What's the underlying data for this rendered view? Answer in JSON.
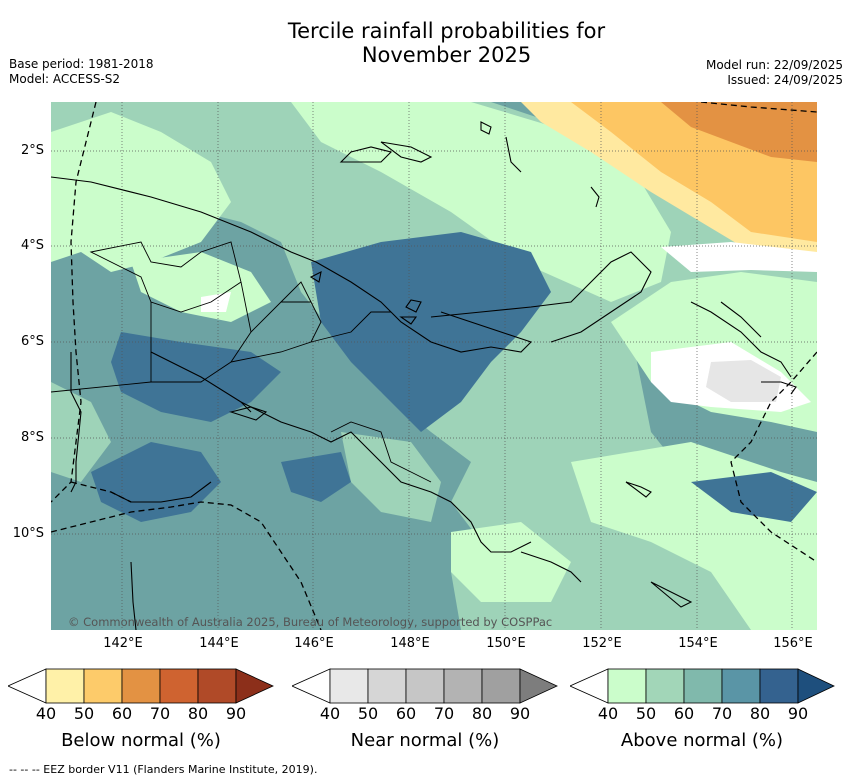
{
  "title_line1": "Tercile rainfall probabilities for",
  "title_line2": "November 2025",
  "base_period": "Base period: 1981-2018",
  "model": "Model: ACCESS-S2",
  "model_run": "Model run: 22/09/2025",
  "issued": "Issued: 24/09/2025",
  "copyright": "© Commonwealth of Australia 2025, Bureau of Meteorology, supported by COSPPac",
  "x_ticks": [
    "142°E",
    "144°E",
    "146°E",
    "148°E",
    "150°E",
    "152°E",
    "154°E",
    "156°E"
  ],
  "y_ticks": [
    "2°S",
    "4°S",
    "6°S",
    "8°S",
    "10°S"
  ],
  "colorbars": [
    {
      "label": "Below normal (%)",
      "ticks": [
        "40",
        "50",
        "60",
        "70",
        "80",
        "90"
      ],
      "colors": [
        "#fff1a8",
        "#fdcb6a",
        "#e39243",
        "#cf6330",
        "#b04a28",
        "#8c2f1a"
      ]
    },
    {
      "label": "Near normal (%)",
      "ticks": [
        "40",
        "50",
        "60",
        "70",
        "80",
        "90"
      ],
      "colors": [
        "#e8e8e8",
        "#d6d6d6",
        "#c6c6c6",
        "#b3b3b3",
        "#a0a0a0",
        "#7d7d7d"
      ]
    },
    {
      "label": "Above normal (%)",
      "ticks": [
        "40",
        "50",
        "60",
        "70",
        "80",
        "90"
      ],
      "colors": [
        "#cbfdcb",
        "#a2d6b8",
        "#80b9ac",
        "#5a95a6",
        "#34628f",
        "#1e4f7d"
      ]
    }
  ],
  "footer": "-- -- -- EEZ border V11 (Flanders Marine Institute, 2019).",
  "colors": {
    "green_40": "#cbfdcb",
    "green_50": "#9ed3b8",
    "teal_60": "#6da3a3",
    "blue_70": "#3f7496",
    "yellow_40": "#ffe9a0",
    "orange_50": "#fdc663",
    "orange_60": "#e39243",
    "grey_40": "#e6e6e6"
  }
}
